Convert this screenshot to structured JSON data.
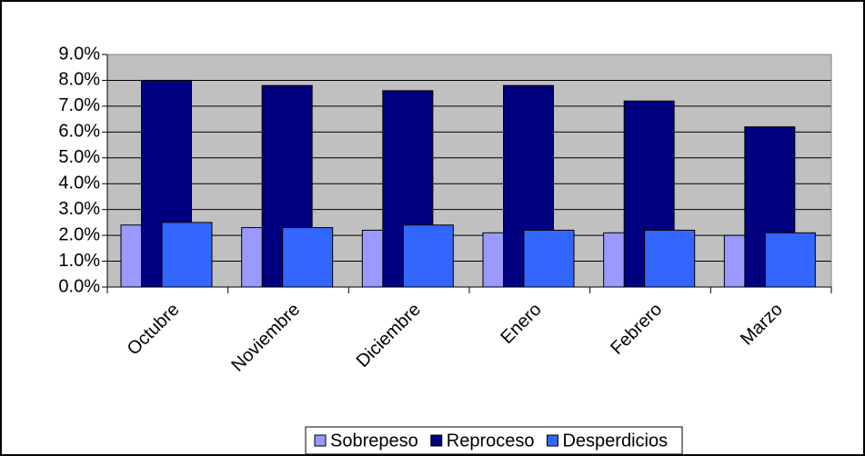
{
  "chart_data": {
    "type": "bar",
    "categories": [
      "Octubre",
      "Noviembre",
      "Diciembre",
      "Enero",
      "Febrero",
      "Marzo"
    ],
    "series": [
      {
        "name": "Sobrepeso",
        "color": "#9999ff",
        "values": [
          2.4,
          2.3,
          2.2,
          2.1,
          2.1,
          2.0
        ]
      },
      {
        "name": "Reproceso",
        "color": "#000080",
        "values": [
          8.0,
          7.8,
          7.6,
          7.8,
          7.2,
          6.2
        ]
      },
      {
        "name": "Desperdicios",
        "color": "#3366ff",
        "values": [
          2.5,
          2.3,
          2.4,
          2.2,
          2.2,
          2.1
        ]
      }
    ],
    "ylim": [
      0,
      9
    ],
    "yticks": [
      {
        "value": 0,
        "label": "0.0%"
      },
      {
        "value": 1,
        "label": "1.0%"
      },
      {
        "value": 2,
        "label": "2.0%"
      },
      {
        "value": 3,
        "label": "3.0%"
      },
      {
        "value": 4,
        "label": "4.0%"
      },
      {
        "value": 5,
        "label": "5.0%"
      },
      {
        "value": 6,
        "label": "6.0%"
      },
      {
        "value": 7,
        "label": "7.0%"
      },
      {
        "value": 8,
        "label": "8.0%"
      },
      {
        "value": 9,
        "label": "9.0%"
      }
    ],
    "grid": true,
    "legend": "bottom"
  }
}
